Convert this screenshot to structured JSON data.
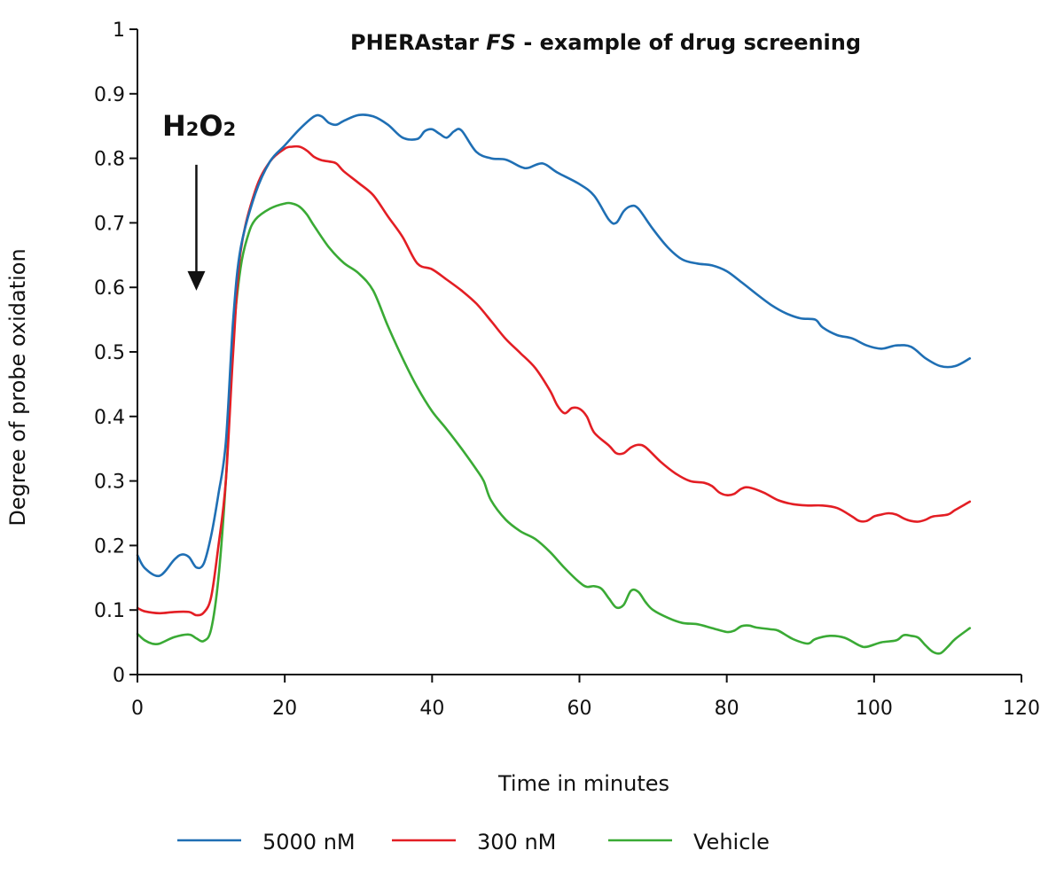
{
  "chart_data": {
    "type": "line",
    "title_prefix": "PHERAstar ",
    "title_italic": "FS",
    "title_suffix": " - example of drug screening",
    "xlabel": "Time in minutes",
    "ylabel": "Degree of probe oxidation",
    "xlim": [
      0,
      120
    ],
    "ylim": [
      0,
      1
    ],
    "x_ticks": [
      "0",
      "20",
      "40",
      "60",
      "80",
      "100",
      "120"
    ],
    "y_ticks": [
      "0",
      "0.1",
      "0.2",
      "0.3",
      "0.4",
      "0.5",
      "0.6",
      "0.7",
      "0.8",
      "0.9",
      "1"
    ],
    "grid": false,
    "legend_position": "bottom",
    "annotation": {
      "label_main_1": "H",
      "label_sub_1": "2",
      "label_main_2": "O",
      "label_sub_2": "2",
      "arrow_x": 8,
      "arrow_y_start": 0.79,
      "arrow_y_end": 0.595
    },
    "series": [
      {
        "name": "5000 nM",
        "color": "#1f6fb4",
        "points": [
          [
            0,
            0.185
          ],
          [
            1,
            0.165
          ],
          [
            3,
            0.153
          ],
          [
            5,
            0.178
          ],
          [
            6,
            0.186
          ],
          [
            7,
            0.182
          ],
          [
            8,
            0.166
          ],
          [
            9,
            0.172
          ],
          [
            10,
            0.215
          ],
          [
            11,
            0.28
          ],
          [
            12,
            0.36
          ],
          [
            13,
            0.55
          ],
          [
            14,
            0.66
          ],
          [
            16,
            0.745
          ],
          [
            18,
            0.795
          ],
          [
            20,
            0.82
          ],
          [
            22,
            0.845
          ],
          [
            24,
            0.865
          ],
          [
            25,
            0.865
          ],
          [
            26,
            0.855
          ],
          [
            27,
            0.852
          ],
          [
            28,
            0.858
          ],
          [
            30,
            0.867
          ],
          [
            32,
            0.865
          ],
          [
            34,
            0.852
          ],
          [
            36,
            0.832
          ],
          [
            38,
            0.83
          ],
          [
            39,
            0.842
          ],
          [
            40,
            0.845
          ],
          [
            41,
            0.838
          ],
          [
            42,
            0.832
          ],
          [
            43,
            0.842
          ],
          [
            44,
            0.843
          ],
          [
            46,
            0.81
          ],
          [
            48,
            0.8
          ],
          [
            50,
            0.798
          ],
          [
            52,
            0.787
          ],
          [
            53,
            0.785
          ],
          [
            55,
            0.792
          ],
          [
            57,
            0.778
          ],
          [
            60,
            0.76
          ],
          [
            62,
            0.742
          ],
          [
            64,
            0.705
          ],
          [
            65,
            0.7
          ],
          [
            66,
            0.718
          ],
          [
            67,
            0.726
          ],
          [
            68,
            0.722
          ],
          [
            70,
            0.69
          ],
          [
            72,
            0.662
          ],
          [
            74,
            0.643
          ],
          [
            76,
            0.637
          ],
          [
            78,
            0.634
          ],
          [
            80,
            0.625
          ],
          [
            82,
            0.608
          ],
          [
            84,
            0.59
          ],
          [
            86,
            0.573
          ],
          [
            88,
            0.56
          ],
          [
            90,
            0.552
          ],
          [
            92,
            0.55
          ],
          [
            93,
            0.538
          ],
          [
            95,
            0.526
          ],
          [
            97,
            0.521
          ],
          [
            99,
            0.51
          ],
          [
            101,
            0.505
          ],
          [
            103,
            0.51
          ],
          [
            105,
            0.508
          ],
          [
            107,
            0.49
          ],
          [
            109,
            0.478
          ],
          [
            111,
            0.478
          ],
          [
            113,
            0.49
          ]
        ]
      },
      {
        "name": "300 nM",
        "color": "#e31e24",
        "points": [
          [
            0,
            0.103
          ],
          [
            1,
            0.098
          ],
          [
            3,
            0.095
          ],
          [
            5,
            0.097
          ],
          [
            7,
            0.097
          ],
          [
            8,
            0.092
          ],
          [
            9,
            0.096
          ],
          [
            10,
            0.12
          ],
          [
            11,
            0.2
          ],
          [
            12,
            0.3
          ],
          [
            13,
            0.5
          ],
          [
            14,
            0.655
          ],
          [
            16,
            0.75
          ],
          [
            18,
            0.795
          ],
          [
            20,
            0.815
          ],
          [
            21,
            0.818
          ],
          [
            22,
            0.818
          ],
          [
            23,
            0.812
          ],
          [
            24,
            0.802
          ],
          [
            25,
            0.797
          ],
          [
            26,
            0.795
          ],
          [
            27,
            0.792
          ],
          [
            28,
            0.78
          ],
          [
            30,
            0.762
          ],
          [
            32,
            0.743
          ],
          [
            34,
            0.71
          ],
          [
            36,
            0.678
          ],
          [
            38,
            0.637
          ],
          [
            40,
            0.628
          ],
          [
            42,
            0.612
          ],
          [
            44,
            0.595
          ],
          [
            46,
            0.575
          ],
          [
            48,
            0.548
          ],
          [
            50,
            0.52
          ],
          [
            52,
            0.498
          ],
          [
            54,
            0.475
          ],
          [
            56,
            0.44
          ],
          [
            57,
            0.417
          ],
          [
            58,
            0.405
          ],
          [
            59,
            0.413
          ],
          [
            60,
            0.412
          ],
          [
            61,
            0.4
          ],
          [
            62,
            0.375
          ],
          [
            64,
            0.355
          ],
          [
            65,
            0.343
          ],
          [
            66,
            0.343
          ],
          [
            67,
            0.352
          ],
          [
            68,
            0.356
          ],
          [
            69,
            0.352
          ],
          [
            71,
            0.33
          ],
          [
            73,
            0.312
          ],
          [
            75,
            0.3
          ],
          [
            77,
            0.297
          ],
          [
            78,
            0.292
          ],
          [
            79,
            0.282
          ],
          [
            80,
            0.278
          ],
          [
            81,
            0.28
          ],
          [
            82,
            0.288
          ],
          [
            83,
            0.29
          ],
          [
            85,
            0.282
          ],
          [
            87,
            0.27
          ],
          [
            89,
            0.264
          ],
          [
            91,
            0.262
          ],
          [
            93,
            0.262
          ],
          [
            95,
            0.258
          ],
          [
            97,
            0.245
          ],
          [
            98,
            0.238
          ],
          [
            99,
            0.238
          ],
          [
            100,
            0.245
          ],
          [
            101,
            0.248
          ],
          [
            102,
            0.25
          ],
          [
            103,
            0.248
          ],
          [
            104,
            0.242
          ],
          [
            105,
            0.238
          ],
          [
            106,
            0.237
          ],
          [
            107,
            0.24
          ],
          [
            108,
            0.245
          ],
          [
            110,
            0.248
          ],
          [
            111,
            0.255
          ],
          [
            113,
            0.268
          ]
        ]
      },
      {
        "name": "Vehicle",
        "color": "#3aaa35",
        "points": [
          [
            0,
            0.063
          ],
          [
            1,
            0.053
          ],
          [
            2,
            0.048
          ],
          [
            3,
            0.048
          ],
          [
            5,
            0.058
          ],
          [
            7,
            0.062
          ],
          [
            8,
            0.056
          ],
          [
            9,
            0.052
          ],
          [
            10,
            0.07
          ],
          [
            11,
            0.15
          ],
          [
            12,
            0.3
          ],
          [
            13,
            0.52
          ],
          [
            14,
            0.63
          ],
          [
            15,
            0.68
          ],
          [
            16,
            0.705
          ],
          [
            18,
            0.722
          ],
          [
            20,
            0.73
          ],
          [
            21,
            0.73
          ],
          [
            22,
            0.725
          ],
          [
            23,
            0.713
          ],
          [
            24,
            0.695
          ],
          [
            26,
            0.662
          ],
          [
            28,
            0.638
          ],
          [
            30,
            0.622
          ],
          [
            32,
            0.595
          ],
          [
            34,
            0.54
          ],
          [
            36,
            0.49
          ],
          [
            38,
            0.445
          ],
          [
            40,
            0.408
          ],
          [
            42,
            0.38
          ],
          [
            44,
            0.35
          ],
          [
            46,
            0.318
          ],
          [
            47,
            0.3
          ],
          [
            48,
            0.27
          ],
          [
            50,
            0.24
          ],
          [
            52,
            0.222
          ],
          [
            54,
            0.21
          ],
          [
            56,
            0.19
          ],
          [
            58,
            0.165
          ],
          [
            60,
            0.143
          ],
          [
            61,
            0.136
          ],
          [
            62,
            0.137
          ],
          [
            63,
            0.133
          ],
          [
            64,
            0.118
          ],
          [
            65,
            0.104
          ],
          [
            66,
            0.108
          ],
          [
            67,
            0.13
          ],
          [
            68,
            0.128
          ],
          [
            69,
            0.112
          ],
          [
            70,
            0.1
          ],
          [
            72,
            0.088
          ],
          [
            74,
            0.08
          ],
          [
            76,
            0.078
          ],
          [
            78,
            0.072
          ],
          [
            80,
            0.066
          ],
          [
            81,
            0.068
          ],
          [
            82,
            0.075
          ],
          [
            83,
            0.076
          ],
          [
            84,
            0.073
          ],
          [
            86,
            0.07
          ],
          [
            87,
            0.068
          ],
          [
            89,
            0.055
          ],
          [
            91,
            0.048
          ],
          [
            92,
            0.055
          ],
          [
            94,
            0.06
          ],
          [
            96,
            0.057
          ],
          [
            98,
            0.045
          ],
          [
            99,
            0.043
          ],
          [
            101,
            0.05
          ],
          [
            103,
            0.053
          ],
          [
            104,
            0.061
          ],
          [
            105,
            0.06
          ],
          [
            106,
            0.057
          ],
          [
            107,
            0.045
          ],
          [
            108,
            0.035
          ],
          [
            109,
            0.033
          ],
          [
            110,
            0.043
          ],
          [
            111,
            0.055
          ],
          [
            113,
            0.072
          ]
        ]
      }
    ]
  }
}
